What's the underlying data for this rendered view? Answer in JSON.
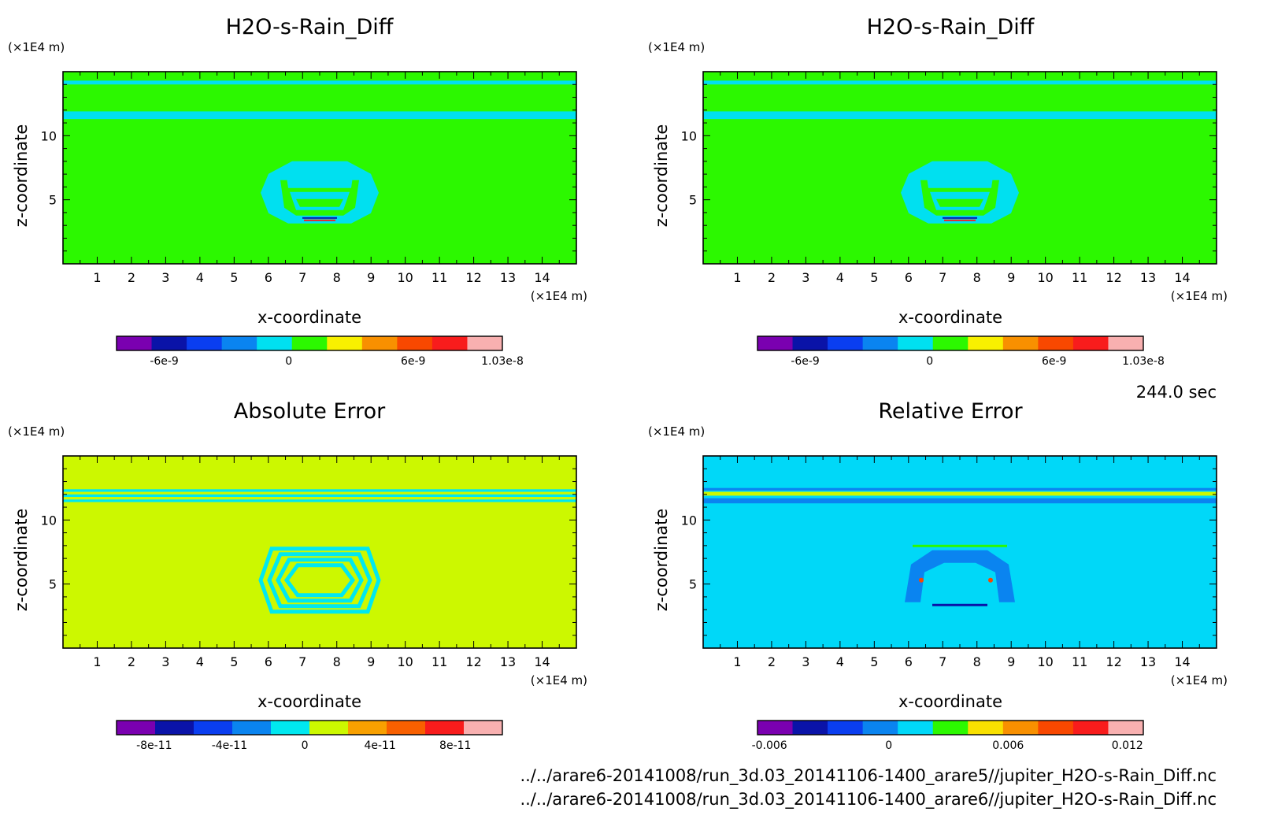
{
  "time_label": "244.0 sec",
  "file_paths": [
    "../../arare6-20141008/run_3d.03_20141106-1400_arare5//jupiter_H2O-s-Rain_Diff.nc",
    "../../arare6-20141008/run_3d.03_20141106-1400_arare6//jupiter_H2O-s-Rain_Diff.nc"
  ],
  "chart_data": [
    {
      "type": "heatmap",
      "title": "H2O-s-Rain_Diff",
      "xlabel": "x-coordinate",
      "ylabel": "z-coordinate",
      "x_unit": "(×1E4 m)",
      "y_unit": "(×1E4 m)",
      "xlim": [
        0,
        15
      ],
      "ylim": [
        0,
        15
      ],
      "x_ticks": [
        "1",
        "2",
        "3",
        "4",
        "5",
        "6",
        "7",
        "8",
        "9",
        "10",
        "11",
        "12",
        "13",
        "14"
      ],
      "y_ticks": [
        "5",
        "10"
      ],
      "background_color": "#2cf800",
      "features": [
        {
          "kind": "band",
          "z": [
            14.0,
            14.3
          ],
          "color": "#00e0f0"
        },
        {
          "kind": "band",
          "z": [
            11.3,
            11.9
          ],
          "color": "#00e0f0"
        },
        {
          "kind": "bubble",
          "center": [
            7.5,
            5.3
          ],
          "color": "#00e0f0"
        }
      ],
      "colorbar": {
        "colors": [
          "#7a00b0",
          "#0a13a8",
          "#0a3ef0",
          "#0a84f0",
          "#00e0f0",
          "#2cf800",
          "#f8f000",
          "#f89000",
          "#f84800",
          "#f81c1c",
          "#f8b0b0"
        ],
        "tick_labels": [
          "-6e-9",
          "0",
          "6e-9",
          "1.03e-8"
        ],
        "tick_values": [
          -6e-09,
          0,
          6e-09,
          1.03e-08
        ],
        "range": [
          -8.3e-09,
          1.03e-08
        ]
      }
    },
    {
      "type": "heatmap",
      "title": "H2O-s-Rain_Diff",
      "xlabel": "x-coordinate",
      "ylabel": "z-coordinate",
      "x_unit": "(×1E4 m)",
      "y_unit": "(×1E4 m)",
      "xlim": [
        0,
        15
      ],
      "ylim": [
        0,
        15
      ],
      "x_ticks": [
        "1",
        "2",
        "3",
        "4",
        "5",
        "6",
        "7",
        "8",
        "9",
        "10",
        "11",
        "12",
        "13",
        "14"
      ],
      "y_ticks": [
        "5",
        "10"
      ],
      "background_color": "#2cf800",
      "features": [
        {
          "kind": "band",
          "z": [
            14.0,
            14.3
          ],
          "color": "#00e0f0"
        },
        {
          "kind": "band",
          "z": [
            11.3,
            11.9
          ],
          "color": "#00e0f0"
        },
        {
          "kind": "bubble",
          "center": [
            7.5,
            5.3
          ],
          "color": "#00e0f0"
        }
      ],
      "colorbar": {
        "colors": [
          "#7a00b0",
          "#0a13a8",
          "#0a3ef0",
          "#0a84f0",
          "#00e0f0",
          "#2cf800",
          "#f8f000",
          "#f89000",
          "#f84800",
          "#f81c1c",
          "#f8b0b0"
        ],
        "tick_labels": [
          "-6e-9",
          "0",
          "6e-9",
          "1.03e-8"
        ],
        "tick_values": [
          -6e-09,
          0,
          6e-09,
          1.03e-08
        ],
        "range": [
          -8.3e-09,
          1.03e-08
        ]
      }
    },
    {
      "type": "heatmap",
      "title": "Absolute Error",
      "xlabel": "x-coordinate",
      "ylabel": "z-coordinate",
      "x_unit": "(×1E4 m)",
      "y_unit": "(×1E4 m)",
      "xlim": [
        0,
        15
      ],
      "ylim": [
        0,
        15
      ],
      "x_ticks": [
        "1",
        "2",
        "3",
        "4",
        "5",
        "6",
        "7",
        "8",
        "9",
        "10",
        "11",
        "12",
        "13",
        "14"
      ],
      "y_ticks": [
        "5",
        "10"
      ],
      "background_color": "#ccf800",
      "features": [
        {
          "kind": "band",
          "z": [
            12.2,
            12.4
          ],
          "color": "#00e8f0"
        },
        {
          "kind": "band",
          "z": [
            11.8,
            12.0
          ],
          "color": "#00e8f0"
        },
        {
          "kind": "band",
          "z": [
            11.4,
            11.6
          ],
          "color": "#00e8f0"
        },
        {
          "kind": "rings",
          "center": [
            7.5,
            5.3
          ],
          "color": "#00e8f0"
        }
      ],
      "colorbar": {
        "colors": [
          "#7a00b0",
          "#0a13a8",
          "#0a3ef0",
          "#0a84f0",
          "#00e8f0",
          "#ccf800",
          "#f8a000",
          "#f86000",
          "#f81c1c",
          "#f8b0b0"
        ],
        "tick_labels": [
          "-8e-11",
          "-4e-11",
          "0",
          "4e-11",
          "8e-11"
        ],
        "tick_values": [
          -8e-11,
          -4e-11,
          0,
          4e-11,
          8e-11
        ],
        "range": [
          -1e-10,
          1.05e-10
        ]
      }
    },
    {
      "type": "heatmap",
      "title": "Relative Error",
      "xlabel": "x-coordinate",
      "ylabel": "z-coordinate",
      "x_unit": "(×1E4 m)",
      "y_unit": "(×1E4 m)",
      "xlim": [
        0,
        15
      ],
      "ylim": [
        0,
        15
      ],
      "x_ticks": [
        "1",
        "2",
        "3",
        "4",
        "5",
        "6",
        "7",
        "8",
        "9",
        "10",
        "11",
        "12",
        "13",
        "14"
      ],
      "y_ticks": [
        "5",
        "10"
      ],
      "background_color": "#00d8f8",
      "features": [
        {
          "kind": "band",
          "z": [
            12.3,
            12.5
          ],
          "color": "#0a84f0"
        },
        {
          "kind": "band",
          "z": [
            11.9,
            12.2
          ],
          "color": "#ccf800"
        },
        {
          "kind": "band",
          "z": [
            11.3,
            11.7
          ],
          "color": "#0a84f0"
        },
        {
          "kind": "speckle",
          "center": [
            7.5,
            5.3
          ],
          "color": "#0a84f0"
        }
      ],
      "colorbar": {
        "colors": [
          "#7a00b0",
          "#0a13a8",
          "#0a3ef0",
          "#0a84f0",
          "#00d8f8",
          "#2cf800",
          "#f8e000",
          "#f89000",
          "#f84800",
          "#f81c1c",
          "#f8b0b0"
        ],
        "tick_labels": [
          "-0.006",
          "0",
          "0.006",
          "0.012"
        ],
        "tick_values": [
          -0.006,
          0,
          0.006,
          0.012
        ],
        "range": [
          -0.0066,
          0.0128
        ]
      }
    }
  ]
}
